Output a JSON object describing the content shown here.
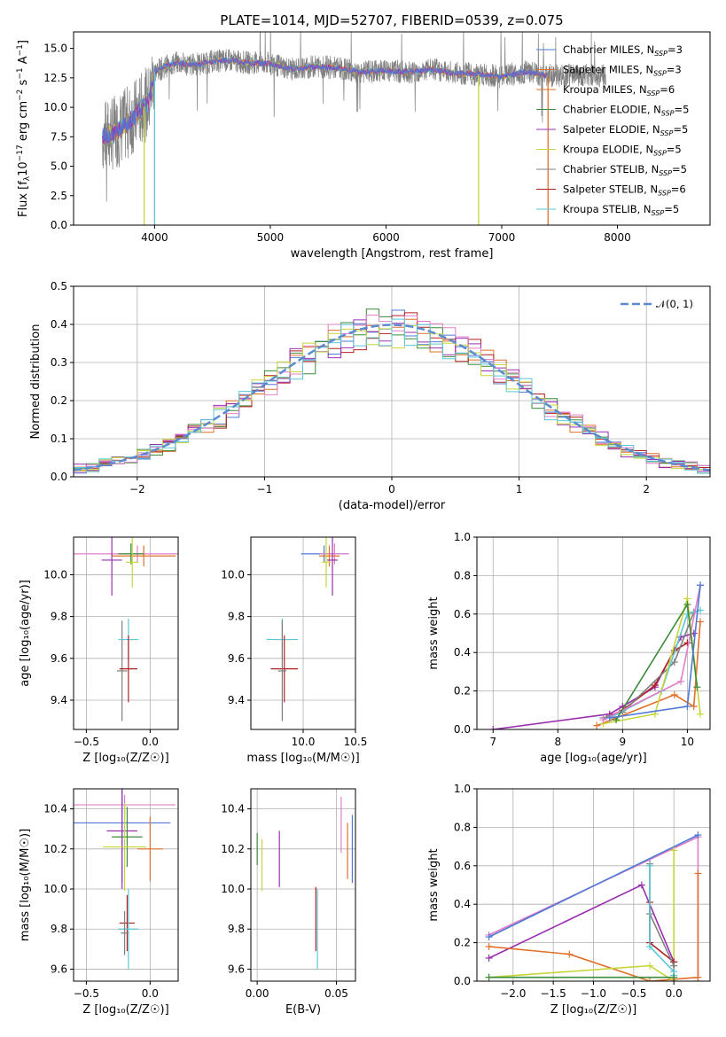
{
  "colors": [
    "#4f79d6",
    "#e0702a",
    "#3c8a3c",
    "#b02020",
    "#9a30b0",
    "#8c564b",
    "#e07fc8",
    "#7f7f7f",
    "#c6d63a",
    "#5bc8d6"
  ],
  "chart_data": [
    {
      "id": "spectrum",
      "type": "line",
      "title": "PLATE=1014, MJD=52707, FIBERID=0539, z=0.075",
      "xlabel": "wavelength [Angstrom, rest frame]",
      "ylabel": "Flux [f$_\\lambda$10$^{-17}$ erg cm$^{-2}$ s$^{-1}$ A$^{-1}$]",
      "ylabel_parts": {
        "a": "Flux [f",
        "b": "λ",
        "c": "10",
        "d": "−17",
        "e": " erg cm",
        "f": "−2",
        "g": " s",
        "h": "−1",
        "i": " A",
        "j": "−1",
        "k": "]"
      },
      "xlim": [
        3300,
        8800
      ],
      "ylim": [
        0,
        16.4
      ],
      "xticks": [
        4000,
        5000,
        6000,
        7000,
        8000
      ],
      "xtick_labels": [
        "4000",
        "5000",
        "6000",
        "7000",
        "8000"
      ],
      "yticks": [
        0,
        2.5,
        5,
        7.5,
        10,
        12.5,
        15
      ],
      "ytick_labels": [
        "0.0",
        "2.5",
        "5.0",
        "7.5",
        "10.0",
        "12.5",
        "15.0"
      ],
      "legend_placement": "top-right",
      "legend": [
        {
          "text": "Chabrier MILES, N",
          "sub": "SSP",
          "post": "=3",
          "color_index": 0
        },
        {
          "text": "Salpeter MILES, N",
          "sub": "SSP",
          "post": "=3",
          "color_index": 1
        },
        {
          "text": "Kroupa MILES, N",
          "sub": "SSP",
          "post": "=6",
          "color_index": 1
        },
        {
          "text": "Chabrier ELODIE, N",
          "sub": "SSP",
          "post": "=5",
          "color_index": 2
        },
        {
          "text": "Salpeter ELODIE, N",
          "sub": "SSP",
          "post": "=5",
          "color_index": 4
        },
        {
          "text": "Kroupa ELODIE, N",
          "sub": "SSP",
          "post": "=5",
          "color_index": 8
        },
        {
          "text": "Chabrier STELIB, N",
          "sub": "SSP",
          "post": "=5",
          "color_index": 7
        },
        {
          "text": "Salpeter STELIB, N",
          "sub": "SSP",
          "post": "=6",
          "color_index": 3
        },
        {
          "text": "Kroupa STELIB, N",
          "sub": "SSP",
          "post": "=5",
          "color_index": 9
        }
      ],
      "spectrum_outline": {
        "x": [
          3550,
          3650,
          3750,
          3850,
          3950,
          4000,
          4100,
          4200,
          4300,
          4400,
          4500,
          4600,
          4800,
          5000,
          5200,
          5400,
          5600,
          5800,
          6000,
          6200,
          6400,
          6600,
          6800,
          7000,
          7200,
          7400
        ],
        "y": [
          7.5,
          7.8,
          8.5,
          9.5,
          10.5,
          13.0,
          13.5,
          13.8,
          13.6,
          13.7,
          13.9,
          14.0,
          13.8,
          13.7,
          13.2,
          13.5,
          13.3,
          13.0,
          13.1,
          13.0,
          13.2,
          12.9,
          12.8,
          12.6,
          13.0,
          12.7
        ]
      },
      "gray_extension_x": [
        7400,
        7900
      ],
      "dropouts": [
        {
          "x": 3910,
          "color_index": 8
        },
        {
          "x": 4000,
          "color_index": 9
        },
        {
          "x": 6800,
          "color_index": 8
        },
        {
          "x": 7400,
          "color_index": 1
        }
      ]
    },
    {
      "id": "residuals",
      "type": "line",
      "xlabel": "(data-model)/error",
      "ylabel": "Normed distribution",
      "xlim": [
        -2.5,
        2.5
      ],
      "ylim": [
        0,
        0.5
      ],
      "xticks": [
        -2,
        -1,
        0,
        1,
        2
      ],
      "xtick_labels": [
        "−2",
        "−1",
        "0",
        "1",
        "2"
      ],
      "yticks": [
        0,
        0.1,
        0.2,
        0.3,
        0.4,
        0.5
      ],
      "ytick_labels": [
        "0.0",
        "0.1",
        "0.2",
        "0.3",
        "0.4",
        "0.5"
      ],
      "legend_placement": "top-right",
      "legend": [
        {
          "text": "𝒩(0, 1)",
          "color": "#5b8bd0"
        }
      ],
      "bin_width": 0.1,
      "bin_start": -2.5,
      "series_colors_index": [
        0,
        1,
        2,
        3,
        4,
        6,
        8,
        9
      ]
    },
    {
      "id": "age-vs-Z",
      "type": "scatter",
      "xlabel": "Z [log₁₀(Z/Z☉)]",
      "ylabel": "age  [log₁₀(age/yr)]",
      "xlim": [
        -0.6,
        0.22
      ],
      "ylim": [
        9.26,
        10.18
      ],
      "xticks": [
        -0.5,
        0.0
      ],
      "xtick_labels": [
        "−0.5",
        "0.0"
      ],
      "yticks": [
        9.4,
        9.6,
        9.8,
        10.0
      ],
      "ytick_labels": [
        "9.4",
        "9.6",
        "9.8",
        "10.0"
      ],
      "points": [
        {
          "x": -0.1,
          "xerr": 0.5,
          "y": 10.1,
          "yerr": 0.04,
          "color_index": 6
        },
        {
          "x": -0.05,
          "xerr": 0.25,
          "y": 10.09,
          "yerr": 0.05,
          "color_index": 1
        },
        {
          "x": -0.15,
          "xerr": 0.1,
          "y": 10.1,
          "yerr": 0.05,
          "color_index": 2
        },
        {
          "x": -0.3,
          "xerr": 0.08,
          "y": 10.07,
          "yerr": 0.17,
          "color_index": 4
        },
        {
          "x": -0.14,
          "xerr": 0.05,
          "y": 10.06,
          "yerr": 0.12,
          "color_index": 8
        },
        {
          "x": -0.22,
          "xerr": 0.04,
          "y": 9.54,
          "yerr": 0.24,
          "color_index": 7
        },
        {
          "x": -0.17,
          "xerr": 0.08,
          "y": 9.69,
          "yerr": 0.1,
          "color_index": 9
        },
        {
          "x": -0.17,
          "xerr": 0.07,
          "y": 9.55,
          "yerr": 0.16,
          "color_index": 3
        }
      ]
    },
    {
      "id": "age-vs-mass",
      "type": "scatter",
      "xlabel": "mass [log₁₀(M/M☉)]",
      "ylabel": "",
      "xlim": [
        9.5,
        10.5
      ],
      "ylim": [
        9.26,
        10.18
      ],
      "xticks": [
        10.0,
        10.5
      ],
      "xtick_labels": [
        "10.0",
        "10.5"
      ],
      "yticks": [
        9.4,
        9.6,
        9.8,
        10.0
      ],
      "ytick_labels": [
        "9.4",
        "9.6",
        "9.8",
        "10.0"
      ],
      "points": [
        {
          "x": 10.2,
          "xerr": 0.22,
          "y": 10.1,
          "yerr": 0.04,
          "color_index": 0
        },
        {
          "x": 10.3,
          "xerr": 0.14,
          "y": 10.1,
          "yerr": 0.05,
          "color_index": 6
        },
        {
          "x": 10.25,
          "xerr": 0.1,
          "y": 10.09,
          "yerr": 0.05,
          "color_index": 1
        },
        {
          "x": 10.28,
          "xerr": 0.05,
          "y": 10.07,
          "yerr": 0.17,
          "color_index": 4
        },
        {
          "x": 10.22,
          "xerr": 0.04,
          "y": 10.06,
          "yerr": 0.12,
          "color_index": 8
        },
        {
          "x": 9.8,
          "xerr": 0.15,
          "y": 9.69,
          "yerr": 0.1,
          "color_index": 9
        },
        {
          "x": 9.82,
          "xerr": 0.13,
          "y": 9.55,
          "yerr": 0.16,
          "color_index": 3
        },
        {
          "x": 9.8,
          "xerr": 0.04,
          "y": 9.54,
          "yerr": 0.24,
          "color_index": 7
        }
      ]
    },
    {
      "id": "massweight-vs-age",
      "type": "line",
      "xlabel": "age  [log₁₀(age/yr)]",
      "ylabel": "mass weight",
      "xlim": [
        6.75,
        10.35
      ],
      "ylim": [
        0,
        1.0
      ],
      "xticks": [
        7,
        8,
        9,
        10
      ],
      "xtick_labels": [
        "7",
        "8",
        "9",
        "10"
      ],
      "yticks": [
        0,
        0.2,
        0.4,
        0.6,
        0.8,
        1.0
      ],
      "ytick_labels": [
        "0.0",
        "0.2",
        "0.4",
        "0.6",
        "0.8",
        "1.0"
      ],
      "series": [
        {
          "color_index": 4,
          "x": [
            7.0,
            8.8,
            9.0,
            9.5,
            9.9,
            10.1
          ],
          "y": [
            0.0,
            0.08,
            0.12,
            0.22,
            0.48,
            0.5
          ]
        },
        {
          "color_index": 3,
          "x": [
            8.8,
            9.0,
            9.5,
            9.8,
            10.0
          ],
          "y": [
            0.07,
            0.1,
            0.23,
            0.41,
            0.45
          ]
        },
        {
          "color_index": 7,
          "x": [
            8.7,
            9.0,
            9.8,
            10.1
          ],
          "y": [
            0.06,
            0.09,
            0.35,
            0.61
          ]
        },
        {
          "color_index": 9,
          "x": [
            8.8,
            9.6,
            10.0,
            10.2
          ],
          "y": [
            0.06,
            0.2,
            0.6,
            0.62
          ]
        },
        {
          "color_index": 1,
          "x": [
            8.6,
            9.8,
            10.1,
            10.2
          ],
          "y": [
            0.02,
            0.18,
            0.12,
            0.56
          ]
        },
        {
          "color_index": 8,
          "x": [
            8.7,
            9.5,
            10.0,
            10.2
          ],
          "y": [
            0.03,
            0.08,
            0.68,
            0.08
          ]
        },
        {
          "color_index": 6,
          "x": [
            8.7,
            9.9,
            10.2
          ],
          "y": [
            0.05,
            0.25,
            0.75
          ]
        },
        {
          "color_index": 2,
          "x": [
            8.9,
            10.0,
            10.15
          ],
          "y": [
            0.05,
            0.65,
            0.22
          ]
        },
        {
          "color_index": 0,
          "x": [
            8.8,
            10.0,
            10.2
          ],
          "y": [
            0.06,
            0.12,
            0.75
          ]
        }
      ]
    },
    {
      "id": "mass-vs-Z",
      "type": "scatter",
      "xlabel": "Z [log₁₀(Z/Z☉)]",
      "ylabel": "mass [log₁₀(M/M☉)]",
      "xlim": [
        -0.6,
        0.22
      ],
      "ylim": [
        9.54,
        10.5
      ],
      "xticks": [
        -0.5,
        0.0
      ],
      "xtick_labels": [
        "−0.5",
        "0.0"
      ],
      "yticks": [
        9.6,
        9.8,
        10.0,
        10.2,
        10.4
      ],
      "ytick_labels": [
        "9.6",
        "9.8",
        "10.0",
        "10.2",
        "10.4"
      ],
      "points": [
        {
          "x": -0.2,
          "xerr": 0.4,
          "y": 10.42,
          "yerr": 0.05,
          "color_index": 6
        },
        {
          "x": -0.22,
          "xerr": 0.38,
          "y": 10.33,
          "yerr": 0.3,
          "color_index": 0
        },
        {
          "x": -0.22,
          "xerr": 0.12,
          "y": 10.29,
          "yerr": 0.29,
          "color_index": 4
        },
        {
          "x": -0.18,
          "xerr": 0.12,
          "y": 10.26,
          "yerr": 0.15,
          "color_index": 2
        },
        {
          "x": -0.2,
          "xerr": 0.17,
          "y": 10.21,
          "yerr": 0.22,
          "color_index": 8
        },
        {
          "x": 0.0,
          "xerr": 0.1,
          "y": 10.2,
          "yerr": 0.16,
          "color_index": 1
        },
        {
          "x": -0.18,
          "xerr": 0.06,
          "y": 9.83,
          "yerr": 0.14,
          "color_index": 3
        },
        {
          "x": -0.17,
          "xerr": 0.08,
          "y": 9.8,
          "yerr": 0.2,
          "color_index": 9
        },
        {
          "x": -0.2,
          "xerr": 0.03,
          "y": 9.78,
          "yerr": 0.11,
          "color_index": 7
        }
      ]
    },
    {
      "id": "mass-vs-ebv",
      "type": "scatter",
      "xlabel": "E(B-V)",
      "ylabel": "",
      "xlim": [
        -0.004,
        0.062
      ],
      "ylim": [
        9.54,
        10.5
      ],
      "xticks": [
        0.0,
        0.05
      ],
      "xtick_labels": [
        "0.00",
        "0.05"
      ],
      "yticks": [
        9.6,
        9.8,
        10.0,
        10.2,
        10.4
      ],
      "ytick_labels": [
        "9.6",
        "9.8",
        "10.0",
        "10.2",
        "10.4"
      ],
      "points": [
        {
          "x": 0.0,
          "y": 10.2,
          "yerr": 0.08,
          "color_index": 2
        },
        {
          "x": 0.003,
          "y": 10.12,
          "yerr": 0.13,
          "color_index": 8
        },
        {
          "x": 0.014,
          "y": 10.15,
          "yerr": 0.14,
          "color_index": 4
        },
        {
          "x": 0.038,
          "y": 9.8,
          "yerr": 0.2,
          "color_index": 9
        },
        {
          "x": 0.037,
          "y": 9.85,
          "yerr": 0.16,
          "color_index": 3
        },
        {
          "x": 0.053,
          "y": 10.32,
          "yerr": 0.14,
          "color_index": 6
        },
        {
          "x": 0.057,
          "y": 10.19,
          "yerr": 0.14,
          "color_index": 1
        },
        {
          "x": 0.06,
          "y": 10.2,
          "yerr": 0.17,
          "color_index": 0
        }
      ]
    },
    {
      "id": "massweight-vs-Z",
      "type": "line",
      "xlabel": "Z [log₁₀(Z/Z☉)]",
      "ylabel": "mass weight",
      "xlim": [
        -2.45,
        0.45
      ],
      "ylim": [
        0,
        1.0
      ],
      "xticks": [
        -2.0,
        -1.5,
        -1.0,
        -0.5,
        0.0
      ],
      "xtick_labels": [
        "−2.0",
        "−1.5",
        "−1.0",
        "−0.5",
        "0.0"
      ],
      "yticks": [
        0,
        0.2,
        0.4,
        0.6,
        0.8,
        1.0
      ],
      "ytick_labels": [
        "0.0",
        "0.2",
        "0.4",
        "0.6",
        "0.8",
        "1.0"
      ],
      "series": [
        {
          "color_index": 6,
          "x": [
            -2.3,
            0.3,
            0.3
          ],
          "y": [
            0.24,
            0.75,
            0.0
          ]
        },
        {
          "color_index": 0,
          "x": [
            -2.3,
            0.3
          ],
          "y": [
            0.23,
            0.76
          ]
        },
        {
          "color_index": 4,
          "x": [
            -2.3,
            -0.4,
            0.0
          ],
          "y": [
            0.12,
            0.5,
            0.1
          ]
        },
        {
          "color_index": 1,
          "x": [
            -2.3,
            -1.3,
            -0.3,
            0.3,
            0.3
          ],
          "y": [
            0.18,
            0.14,
            0.0,
            0.02,
            0.56
          ]
        },
        {
          "color_index": 8,
          "x": [
            -2.3,
            -0.3,
            0.0,
            0.0
          ],
          "y": [
            0.02,
            0.08,
            0.0,
            0.68
          ]
        },
        {
          "color_index": 3,
          "x": [
            -0.3,
            -0.3,
            0.0,
            0.0
          ],
          "y": [
            0.41,
            0.2,
            0.1,
            0.0
          ]
        },
        {
          "color_index": 7,
          "x": [
            -0.3,
            -0.3,
            0.0
          ],
          "y": [
            0.61,
            0.35,
            0.08
          ]
        },
        {
          "color_index": 9,
          "x": [
            -0.3,
            -0.3,
            0.0,
            0.0
          ],
          "y": [
            0.6,
            0.18,
            0.05,
            0.03
          ]
        },
        {
          "color_index": 2,
          "x": [
            -2.3,
            0.0
          ],
          "y": [
            0.02,
            0.02
          ]
        }
      ]
    }
  ]
}
